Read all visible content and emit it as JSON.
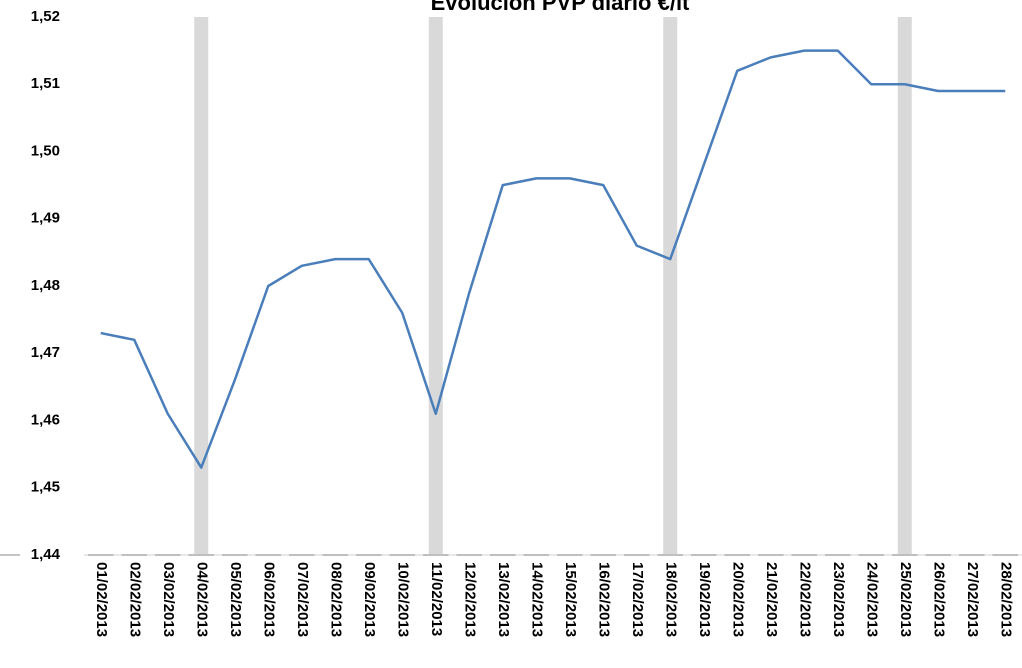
{
  "chart_data": {
    "type": "line",
    "title": "Evolución PVP diario €/lt",
    "categories": [
      "01/02/2013",
      "02/02/2013",
      "03/02/2013",
      "04/02/2013",
      "05/02/2013",
      "06/02/2013",
      "07/02/2013",
      "08/02/2013",
      "09/02/2013",
      "10/02/2013",
      "11/02/2013",
      "12/02/2013",
      "13/02/2013",
      "14/02/2013",
      "15/02/2013",
      "16/02/2013",
      "17/02/2013",
      "18/02/2013",
      "19/02/2013",
      "20/02/2013",
      "21/02/2013",
      "22/02/2013",
      "23/02/2013",
      "24/02/2013",
      "25/02/2013",
      "26/02/2013",
      "27/02/2013",
      "28/02/2013"
    ],
    "values": [
      1.473,
      1.472,
      1.461,
      1.453,
      1.466,
      1.48,
      1.483,
      1.484,
      1.484,
      1.476,
      1.461,
      1.479,
      1.495,
      1.496,
      1.496,
      1.495,
      1.486,
      1.484,
      1.498,
      1.512,
      1.514,
      1.515,
      1.515,
      1.51,
      1.51,
      1.509,
      1.509,
      1.509
    ],
    "color": "#4a7ebb",
    "highlight_indices": [
      3,
      10,
      17,
      24
    ],
    "highlight_color": "#d9d9d9",
    "ylim": [
      1.44,
      1.52
    ],
    "yticks": [
      {
        "value": 1.44,
        "label": "1,44"
      },
      {
        "value": 1.45,
        "label": "1,45"
      },
      {
        "value": 1.46,
        "label": "1,46"
      },
      {
        "value": 1.47,
        "label": "1,47"
      },
      {
        "value": 1.48,
        "label": "1,48"
      },
      {
        "value": 1.49,
        "label": "1,49"
      },
      {
        "value": 1.5,
        "label": "1,50"
      },
      {
        "value": 1.51,
        "label": "1,51"
      },
      {
        "value": 1.52,
        "label": "1,52"
      }
    ],
    "grid": false
  }
}
